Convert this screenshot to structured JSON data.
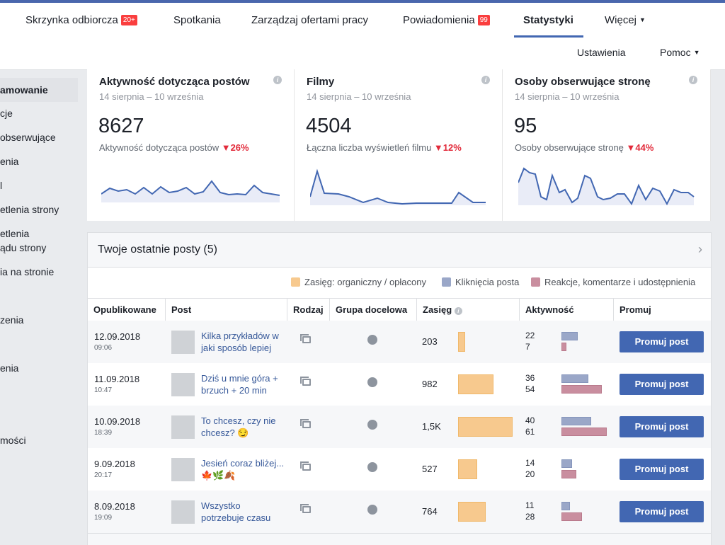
{
  "nav": {
    "items": [
      {
        "label": "Skrzynka odbiorcza",
        "badge": "20+"
      },
      {
        "label": "Spotkania",
        "badge": null
      },
      {
        "label": "Zarządzaj ofertami pracy",
        "badge": null
      },
      {
        "label": "Powiadomienia",
        "badge": "99"
      },
      {
        "label": "Statystyki",
        "badge": null
      },
      {
        "label": "Więcej",
        "badge": null
      }
    ],
    "sub": [
      "Ustawienia",
      "Pomoc"
    ],
    "active_color": "#4267b2"
  },
  "sidebar": {
    "items": [
      "amowanie",
      "cje",
      "obserwujące",
      "enia",
      "l",
      "etlenia strony",
      "etlenia",
      "ądu strony",
      "ia na stronie",
      "zenia",
      "enia",
      "mości"
    ]
  },
  "cards": [
    {
      "title": "Aktywność dotycząca postów",
      "range": "14 sierpnia – 10 września",
      "value": "8627",
      "sub": "Aktywność dotycząca postów",
      "delta": "26%"
    },
    {
      "title": "Filmy",
      "range": "14 sierpnia – 10 września",
      "value": "4504",
      "sub": "Łączna liczba wyświetleń filmu",
      "delta": "12%"
    },
    {
      "title": "Osoby obserwujące stronę",
      "range": "14 sierpnia – 10 września",
      "value": "95",
      "sub": "Osoby obserwujące stronę",
      "delta": "44%"
    }
  ],
  "posts": {
    "title": "Twoje ostatnie posty (5)",
    "legend": [
      {
        "label": "Zasięg: organiczny / opłacony",
        "color": "#f7c98e"
      },
      {
        "label": "Kliknięcia posta",
        "color": "#9aa7c8"
      },
      {
        "label": "Reakcje, komentarze i udostępnienia",
        "color": "#c98e9f"
      }
    ],
    "columns": [
      "Opublikowane",
      "Post",
      "Rodzaj",
      "Grupa docelowa",
      "Zasięg",
      "Aktywność",
      "Promuj"
    ],
    "button_label": "Promuj post",
    "rows": [
      {
        "date": "12.09.2018",
        "time": "09:06",
        "text": "Kilka przykładów w jaki sposób lepiej",
        "reach": "203",
        "reach_n": 203,
        "clicks": "22",
        "clicks_n": 22,
        "reactions": "7",
        "reactions_n": 7
      },
      {
        "date": "11.09.2018",
        "time": "10:47",
        "text": "Dziś u mnie góra + brzuch + 20 min",
        "reach": "982",
        "reach_n": 982,
        "clicks": "36",
        "clicks_n": 36,
        "reactions": "54",
        "reactions_n": 54
      },
      {
        "date": "10.09.2018",
        "time": "18:39",
        "text": "To chcesz, czy nie chcesz? 😏",
        "reach": "1,5K",
        "reach_n": 1500,
        "clicks": "40",
        "clicks_n": 40,
        "reactions": "61",
        "reactions_n": 61
      },
      {
        "date": "9.09.2018",
        "time": "20:17",
        "text": "Jesień coraz bliżej... 🍁🌿🍂",
        "reach": "527",
        "reach_n": 527,
        "clicks": "14",
        "clicks_n": 14,
        "reactions": "20",
        "reactions_n": 20
      },
      {
        "date": "8.09.2018",
        "time": "19:09",
        "text": "Wszystko potrzebuje czasu",
        "reach": "764",
        "reach_n": 764,
        "clicks": "11",
        "clicks_n": 11,
        "reactions": "28",
        "reactions_n": 28
      }
    ]
  }
}
